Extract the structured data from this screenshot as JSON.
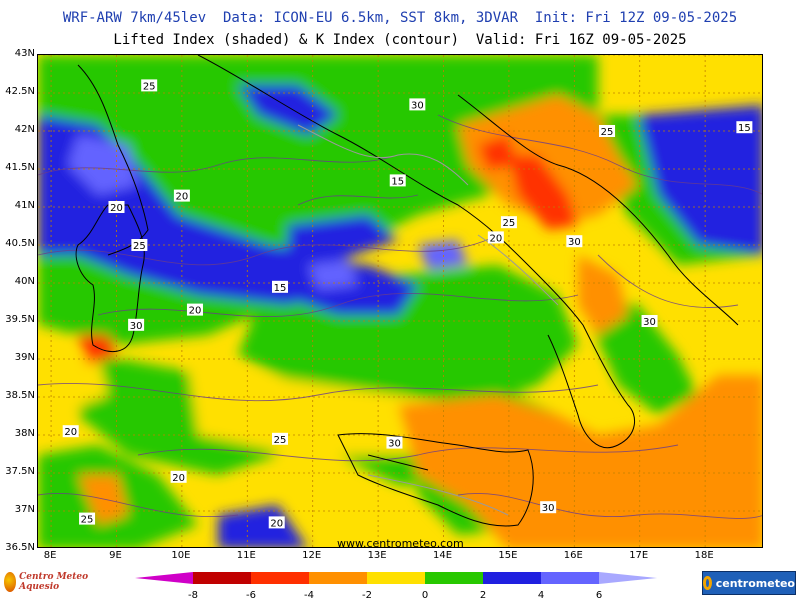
{
  "header": {
    "title_line1": "WRF-ARW 7km/45lev  Data: ICON-EU 6.5km, SST 8km, 3DVAR  Init: Fri 12Z 09-05-2025",
    "title_line2": "Lifted Index (shaded) & K Index (contour)  Valid: Fri 16Z 09-05-2025"
  },
  "map": {
    "lon_range": [
      7.8,
      18.9
    ],
    "lat_range": [
      36.5,
      43.0
    ],
    "lat_ticks": [
      "43N",
      "42.5N",
      "42N",
      "41.5N",
      "41N",
      "40.5N",
      "40N",
      "39.5N",
      "39N",
      "38.5N",
      "38N",
      "37.5N",
      "37N",
      "36.5N"
    ],
    "lat_values": [
      43,
      42.5,
      42,
      41.5,
      41,
      40.5,
      40,
      39.5,
      39,
      38.5,
      38,
      37.5,
      37,
      36.5
    ],
    "lon_ticks": [
      "8E",
      "9E",
      "10E",
      "11E",
      "12E",
      "13E",
      "14E",
      "15E",
      "16E",
      "17E",
      "18E"
    ],
    "lon_values": [
      8,
      9,
      10,
      11,
      12,
      13,
      14,
      15,
      16,
      17,
      18
    ],
    "watermark": "www.centrometeo.com",
    "contour_labels": [
      {
        "text": "25",
        "lon": 9.5,
        "lat": 42.6
      },
      {
        "text": "30",
        "lon": 13.6,
        "lat": 42.35
      },
      {
        "text": "25",
        "lon": 16.5,
        "lat": 42.0
      },
      {
        "text": "15",
        "lon": 18.6,
        "lat": 42.05
      },
      {
        "text": "15",
        "lon": 13.3,
        "lat": 41.35
      },
      {
        "text": "20",
        "lon": 10.0,
        "lat": 41.15
      },
      {
        "text": "20",
        "lon": 9.0,
        "lat": 41.0
      },
      {
        "text": "25",
        "lon": 15.0,
        "lat": 40.8
      },
      {
        "text": "20",
        "lon": 14.8,
        "lat": 40.6
      },
      {
        "text": "25",
        "lon": 9.35,
        "lat": 40.5
      },
      {
        "text": "30",
        "lon": 16.0,
        "lat": 40.55
      },
      {
        "text": "15",
        "lon": 11.5,
        "lat": 39.95
      },
      {
        "text": "20",
        "lon": 10.2,
        "lat": 39.65
      },
      {
        "text": "30",
        "lon": 9.3,
        "lat": 39.45
      },
      {
        "text": "30",
        "lon": 17.15,
        "lat": 39.5
      },
      {
        "text": "20",
        "lon": 8.3,
        "lat": 38.05
      },
      {
        "text": "25",
        "lon": 11.5,
        "lat": 37.95
      },
      {
        "text": "30",
        "lon": 13.25,
        "lat": 37.9
      },
      {
        "text": "20",
        "lon": 9.95,
        "lat": 37.45
      },
      {
        "text": "25",
        "lon": 8.55,
        "lat": 36.9
      },
      {
        "text": "20",
        "lon": 11.45,
        "lat": 36.85
      },
      {
        "text": "30",
        "lon": 15.6,
        "lat": 37.05
      }
    ]
  },
  "legend": {
    "ticks": [
      "-8",
      "-6",
      "-4",
      "-2",
      "0",
      "2",
      "4",
      "6"
    ],
    "tick_values": [
      -8,
      -6,
      -4,
      -2,
      0,
      2,
      4,
      6
    ],
    "colors": {
      "lt_-8": "#d000c8",
      "-8_-6": "#c00000",
      "-6_-4": "#ff3000",
      "-4_-2": "#ff9000",
      "-2_0": "#ffe000",
      "0_2": "#28c800",
      "2_4": "#2020e0",
      "4_6": "#6464ff",
      "gt_6": "#a8a8ff"
    }
  },
  "logos": {
    "left_text": "Centro Meteo Aquesio",
    "right_text": "centrometeo"
  }
}
